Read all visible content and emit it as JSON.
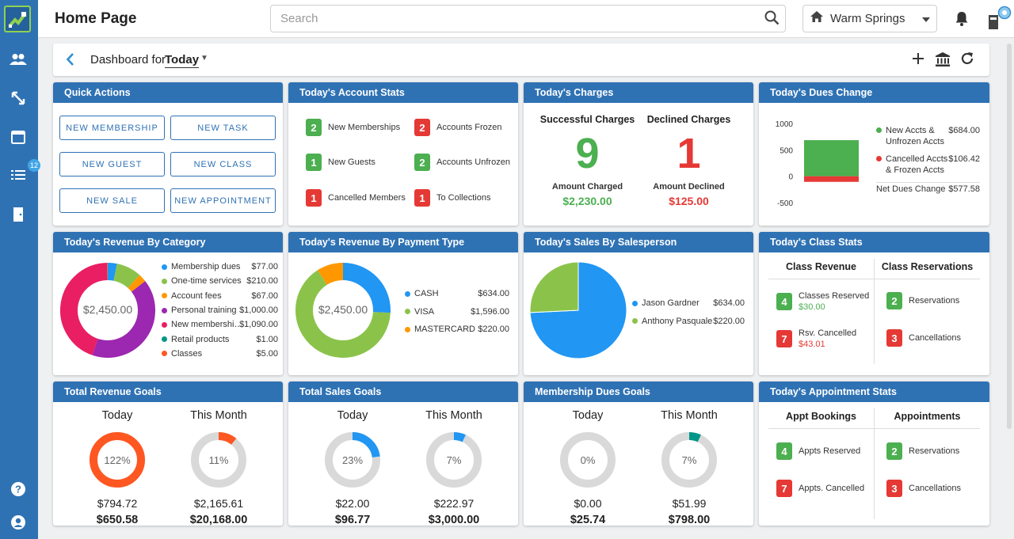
{
  "app": {
    "title": "Home Page"
  },
  "search": {
    "placeholder": "Search"
  },
  "location": {
    "label": "Warm Springs"
  },
  "sidebar": {
    "notification_badge": "12"
  },
  "dashboard": {
    "label": "Dashboard for",
    "period": "Today"
  },
  "quick_actions": {
    "title": "Quick Actions",
    "buttons": [
      "NEW MEMBERSHIP",
      "NEW TASK",
      "NEW GUEST",
      "NEW CLASS",
      "NEW SALE",
      "NEW APPOINTMENT"
    ]
  },
  "account_stats": {
    "title": "Today's Account Stats",
    "items": [
      {
        "count": "2",
        "label": "New Memberships",
        "color": "green"
      },
      {
        "count": "2",
        "label": "Accounts Frozen",
        "color": "red"
      },
      {
        "count": "1",
        "label": "New Guests",
        "color": "green"
      },
      {
        "count": "2",
        "label": "Accounts Unfrozen",
        "color": "green"
      },
      {
        "count": "1",
        "label": "Cancelled Members",
        "color": "red"
      },
      {
        "count": "1",
        "label": "To Collections",
        "color": "red"
      }
    ]
  },
  "charges": {
    "title": "Today's Charges",
    "successful": {
      "title": "Successful Charges",
      "count": "9",
      "sub_label": "Amount Charged",
      "amount": "$2,230.00"
    },
    "declined": {
      "title": "Declined Charges",
      "count": "1",
      "sub_label": "Amount Declined",
      "amount": "$125.00"
    }
  },
  "dues_change": {
    "title": "Today's Dues Change",
    "y_ticks": [
      "1000",
      "500",
      "0",
      "-500"
    ],
    "legend": [
      {
        "label1": "New Accts &",
        "label2": "Unfrozen Accts",
        "value": "$684.00",
        "color": "#4caf50"
      },
      {
        "label1": "Cancelled Accts",
        "label2": "& Frozen Accts",
        "value": "$106.42",
        "color": "#e53935"
      }
    ],
    "net_label": "Net Dues Change",
    "net_value": "$577.58"
  },
  "revenue_category": {
    "title": "Today's Revenue By Category",
    "center": "$2,450.00",
    "items": [
      {
        "name": "Membership dues",
        "value": "$77.00",
        "color": "#2196f3"
      },
      {
        "name": "One-time services",
        "value": "$210.00",
        "color": "#8bc34a"
      },
      {
        "name": "Account fees",
        "value": "$67.00",
        "color": "#ff9800"
      },
      {
        "name": "Personal training",
        "value": "$1,000.00",
        "color": "#9c27b0"
      },
      {
        "name": "New membershi…",
        "value": "$1,090.00",
        "color": "#e91e63"
      },
      {
        "name": "Retail products",
        "value": "$1.00",
        "color": "#009688"
      },
      {
        "name": "Classes",
        "value": "$5.00",
        "color": "#ff5722"
      }
    ]
  },
  "revenue_payment": {
    "title": "Today's Revenue By Payment Type",
    "center": "$2,450.00",
    "items": [
      {
        "name": "CASH",
        "value": "$634.00",
        "color": "#2196f3"
      },
      {
        "name": "VISA",
        "value": "$1,596.00",
        "color": "#8bc34a"
      },
      {
        "name": "MASTERCARD",
        "value": "$220.00",
        "color": "#ff9800"
      }
    ]
  },
  "sales_person": {
    "title": "Today's Sales By Salesperson",
    "items": [
      {
        "name": "Jason Gardner",
        "value": "$634.00",
        "color": "#2196f3"
      },
      {
        "name": "Anthony Pasquale",
        "value": "$220.00",
        "color": "#8bc34a"
      }
    ]
  },
  "class_stats": {
    "title": "Today's Class Stats",
    "col1": "Class Revenue",
    "col2": "Class Reservations",
    "reserved": {
      "count": "4",
      "label": "Classes Reserved",
      "amount": "$30.00"
    },
    "cancelled": {
      "count": "7",
      "label": "Rsv. Cancelled",
      "amount": "$43.01"
    },
    "reservations": {
      "count": "2",
      "label": "Reservations"
    },
    "cancellations": {
      "count": "3",
      "label": "Cancellations"
    }
  },
  "revenue_goals": {
    "title": "Total Revenue Goals",
    "today": {
      "label": "Today",
      "pct": "122%",
      "amount": "$794.72",
      "target": "$650.58",
      "fraction": 1.0,
      "color": "#ff5722"
    },
    "month": {
      "label": "This Month",
      "pct": "11%",
      "amount": "$2,165.61",
      "target": "$20,168.00",
      "fraction": 0.11,
      "color": "#ff5722"
    }
  },
  "sales_goals": {
    "title": "Total Sales Goals",
    "today": {
      "label": "Today",
      "pct": "23%",
      "amount": "$22.00",
      "target": "$96.77",
      "fraction": 0.23,
      "color": "#2196f3"
    },
    "month": {
      "label": "This Month",
      "pct": "7%",
      "amount": "$222.97",
      "target": "$3,000.00",
      "fraction": 0.07,
      "color": "#2196f3"
    }
  },
  "dues_goals": {
    "title": "Membership Dues Goals",
    "today": {
      "label": "Today",
      "pct": "0%",
      "amount": "$0.00",
      "target": "$25.74",
      "fraction": 0.0,
      "color": "#009688"
    },
    "month": {
      "label": "This Month",
      "pct": "7%",
      "amount": "$51.99",
      "target": "$798.00",
      "fraction": 0.07,
      "color": "#009688"
    }
  },
  "appointment_stats": {
    "title": "Today's Appointment Stats",
    "col1": "Appt Bookings",
    "col2": "Appointments",
    "reserved": {
      "count": "4",
      "label": "Appts Reserved"
    },
    "cancelled": {
      "count": "7",
      "label": "Appts. Cancelled"
    },
    "reservations": {
      "count": "2",
      "label": "Reservations"
    },
    "cancellations": {
      "count": "3",
      "label": "Cancellations"
    }
  },
  "chart_data": [
    {
      "type": "pie",
      "title": "Today's Revenue By Category",
      "categories": [
        "Membership dues",
        "One-time services",
        "Account fees",
        "Personal training",
        "New membershi…",
        "Retail products",
        "Classes"
      ],
      "values": [
        77,
        210,
        67,
        1000,
        1090,
        1,
        5
      ]
    },
    {
      "type": "pie",
      "title": "Today's Revenue By Payment Type",
      "categories": [
        "CASH",
        "VISA",
        "MASTERCARD"
      ],
      "values": [
        634,
        1596,
        220
      ]
    },
    {
      "type": "pie",
      "title": "Today's Sales By Salesperson",
      "categories": [
        "Jason Gardner",
        "Anthony Pasquale"
      ],
      "values": [
        634,
        220
      ]
    },
    {
      "type": "bar",
      "title": "Today's Dues Change",
      "categories": [
        "New Accts & Unfrozen Accts",
        "Cancelled Accts & Frozen Accts"
      ],
      "values": [
        684.0,
        -106.42
      ],
      "ylim": [
        -500,
        1000
      ]
    }
  ]
}
